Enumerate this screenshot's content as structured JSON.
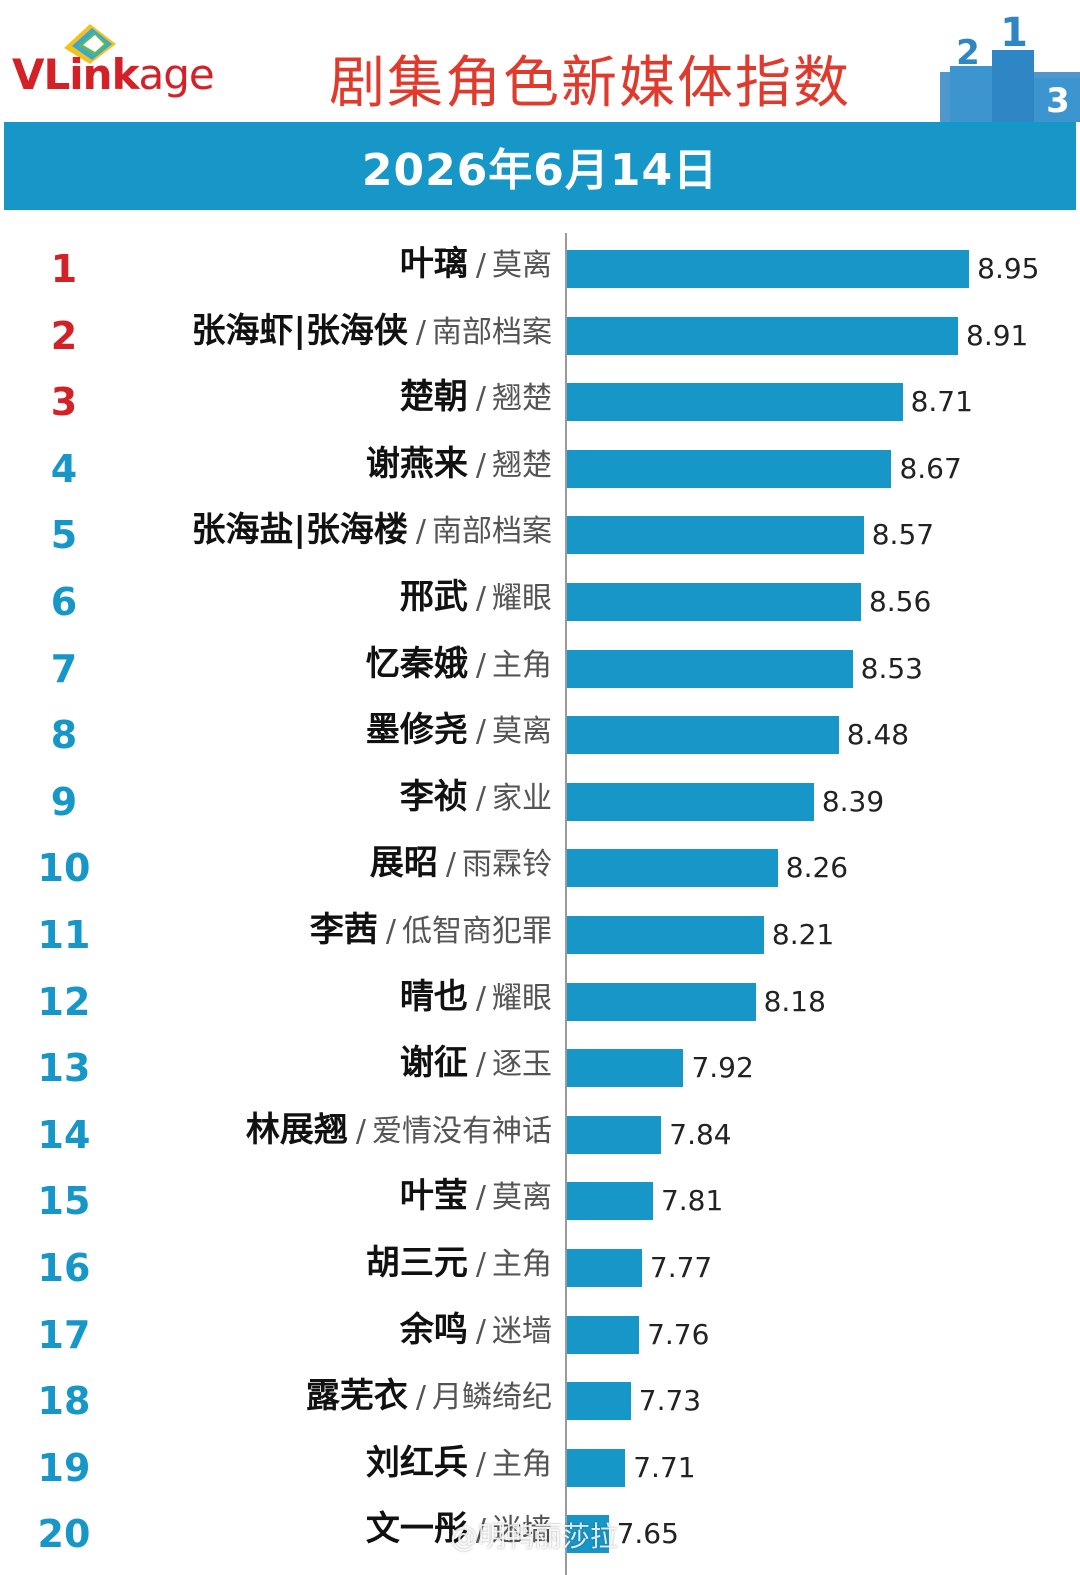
{
  "header": {
    "logo_v": "V",
    "logo_link": "Link",
    "logo_age": "age",
    "title": "剧集角色新媒体指数",
    "date": "2026年6月14日",
    "colors": {
      "title_red": "#e03a2d",
      "logo_red": "#d42027",
      "band_blue": "#1797c7",
      "podium_blue": "#2f86c4"
    },
    "podium_numbers": [
      "2",
      "1",
      "3"
    ]
  },
  "watermark": "@明鸭丽莎拉",
  "chart_data": {
    "type": "bar",
    "orientation": "horizontal",
    "title": "剧集角色新媒体指数",
    "subtitle": "2026年6月14日",
    "xlabel": "",
    "ylabel": "",
    "xlim": [
      7.5,
      9.0
    ],
    "grid": false,
    "rank_colors": {
      "top3": "#d42027",
      "others": "#1797c7"
    },
    "bar_color": "#1797c7",
    "items": [
      {
        "rank": "1",
        "name": "叶璃",
        "drama": "莫离",
        "value": 8.95,
        "label": "8.95"
      },
      {
        "rank": "2",
        "name": "张海虾|张海侠",
        "drama": "南部档案",
        "value": 8.91,
        "label": "8.91"
      },
      {
        "rank": "3",
        "name": "楚朝",
        "drama": "翘楚",
        "value": 8.71,
        "label": "8.71"
      },
      {
        "rank": "4",
        "name": "谢燕来",
        "drama": "翘楚",
        "value": 8.67,
        "label": "8.67"
      },
      {
        "rank": "5",
        "name": "张海盐|张海楼",
        "drama": "南部档案",
        "value": 8.57,
        "label": "8.57"
      },
      {
        "rank": "6",
        "name": "邢武",
        "drama": "耀眼",
        "value": 8.56,
        "label": "8.56"
      },
      {
        "rank": "7",
        "name": "忆秦娥",
        "drama": "主角",
        "value": 8.53,
        "label": "8.53"
      },
      {
        "rank": "8",
        "name": "墨修尧",
        "drama": "莫离",
        "value": 8.48,
        "label": "8.48"
      },
      {
        "rank": "9",
        "name": "李祯",
        "drama": "家业",
        "value": 8.39,
        "label": "8.39"
      },
      {
        "rank": "10",
        "name": "展昭",
        "drama": "雨霖铃",
        "value": 8.26,
        "label": "8.26"
      },
      {
        "rank": "11",
        "name": "李茜",
        "drama": "低智商犯罪",
        "value": 8.21,
        "label": "8.21"
      },
      {
        "rank": "12",
        "name": "晴也",
        "drama": "耀眼",
        "value": 8.18,
        "label": "8.18"
      },
      {
        "rank": "13",
        "name": "谢征",
        "drama": "逐玉",
        "value": 7.92,
        "label": "7.92"
      },
      {
        "rank": "14",
        "name": "林展翘",
        "drama": "爱情没有神话",
        "value": 7.84,
        "label": "7.84"
      },
      {
        "rank": "15",
        "name": "叶莹",
        "drama": "莫离",
        "value": 7.81,
        "label": "7.81"
      },
      {
        "rank": "16",
        "name": "胡三元",
        "drama": "主角",
        "value": 7.77,
        "label": "7.77"
      },
      {
        "rank": "17",
        "name": "余鸣",
        "drama": "迷墙",
        "value": 7.76,
        "label": "7.76"
      },
      {
        "rank": "18",
        "name": "露芜衣",
        "drama": "月鳞绮纪",
        "value": 7.73,
        "label": "7.73"
      },
      {
        "rank": "19",
        "name": "刘红兵",
        "drama": "主角",
        "value": 7.71,
        "label": "7.71"
      },
      {
        "rank": "20",
        "name": "文一彤",
        "drama": "迷墙",
        "value": 7.65,
        "label": "7.65"
      }
    ]
  }
}
